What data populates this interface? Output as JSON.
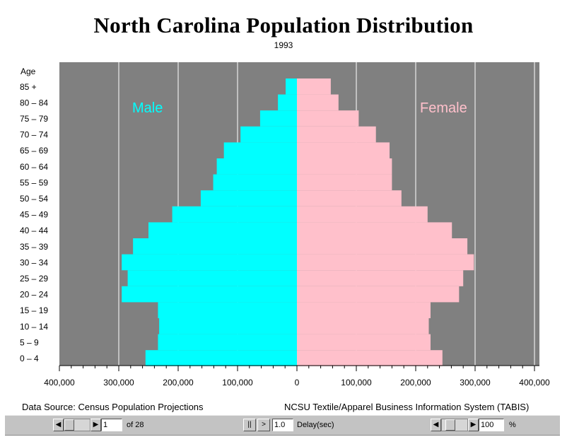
{
  "chart_data": {
    "type": "bar",
    "title": "North Carolina Population Distribution",
    "subtitle": "1993",
    "ylabel": "Age",
    "categories": [
      "0 – 4",
      "5 – 9",
      "10 – 14",
      "15 – 19",
      "20 – 24",
      "25 – 29",
      "30 – 34",
      "35 – 39",
      "40 – 44",
      "45 – 49",
      "50 – 54",
      "55 – 59",
      "60 – 64",
      "65 – 69",
      "70 – 74",
      "75 – 79",
      "80 – 84",
      "85 +"
    ],
    "series": [
      {
        "name": "Male",
        "color": "#00ffff",
        "values": [
          255000,
          234000,
          232000,
          234000,
          295000,
          285000,
          295000,
          276000,
          250000,
          210000,
          162000,
          141000,
          135000,
          123000,
          95000,
          62000,
          32000,
          19000
        ]
      },
      {
        "name": "Female",
        "color": "#ffc0cb",
        "values": [
          245000,
          225000,
          222000,
          225000,
          273000,
          280000,
          298000,
          287000,
          261000,
          220000,
          176000,
          160000,
          160000,
          156000,
          133000,
          104000,
          70000,
          57000
        ]
      }
    ],
    "xlim": [
      -400000,
      400000
    ],
    "xticks": [
      -400000,
      -300000,
      -200000,
      -100000,
      0,
      100000,
      200000,
      300000,
      400000
    ],
    "xtick_labels": [
      "400,000",
      "300,000",
      "200,000",
      "100,000",
      "0",
      "100,000",
      "200,000",
      "300,000",
      "400,000"
    ],
    "grid": "vertical",
    "background": "#808080"
  },
  "footer": {
    "source": "Data Source:  Census Population Projections",
    "credit": "NCSU Textile/Apparel Business Information System (TABIS)"
  },
  "controls": {
    "frame_value": "1",
    "frame_total": "of 28",
    "pause_label": "||",
    "play_label": ">",
    "prev_label": "◀",
    "next_label": "▶",
    "delay_value": "1.0",
    "delay_label": "Delay(sec)",
    "zoom_value": "100",
    "zoom_unit": "%"
  }
}
